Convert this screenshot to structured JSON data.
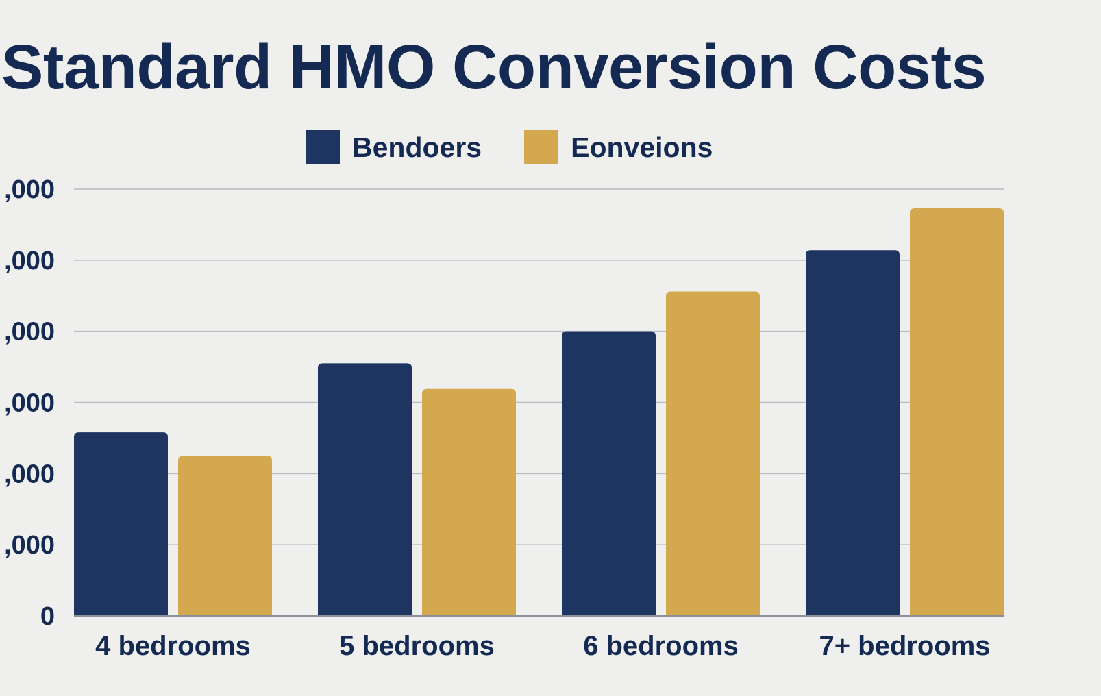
{
  "chart_data": {
    "type": "bar",
    "title": "Standard HMO Conversion Costs",
    "categories": [
      "4 bedrooms",
      "5 bedrooms",
      "6 bedrooms",
      "7+ bedrooms"
    ],
    "series": [
      {
        "name": "Bendoers",
        "color": "#1e3461",
        "values": [
          2.58,
          3.55,
          4.0,
          5.14
        ]
      },
      {
        "name": "Eonveions",
        "color": "#d4a84e",
        "values": [
          2.25,
          3.19,
          4.56,
          5.73
        ]
      }
    ],
    "yticks": [
      {
        "value": 0,
        "label": "0"
      },
      {
        "value": 1,
        "label": ",000"
      },
      {
        "value": 2,
        "label": ",000"
      },
      {
        "value": 3,
        "label": ",000"
      },
      {
        "value": 4,
        "label": ",000"
      },
      {
        "value": 5,
        "label": ",000"
      },
      {
        "value": 6,
        "label": ",000"
      }
    ],
    "ylim": [
      0,
      6
    ],
    "grid": true,
    "legend_position": "top"
  }
}
